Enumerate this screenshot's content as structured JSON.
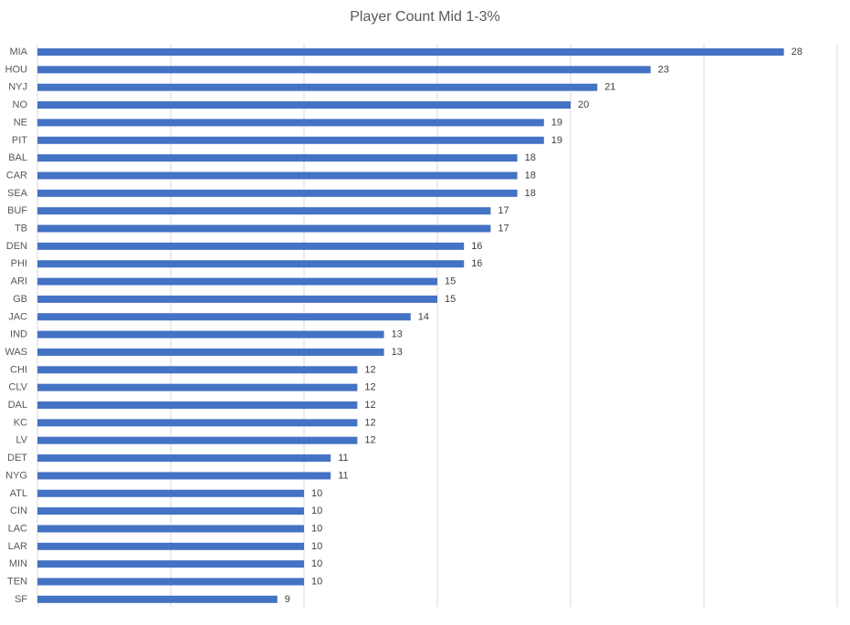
{
  "chart_data": {
    "type": "bar",
    "orientation": "horizontal",
    "title": "Player Count Mid 1-3%",
    "xlabel": "",
    "ylabel": "",
    "categories": [
      "MIA",
      "HOU",
      "NYJ",
      "NO",
      "NE",
      "PIT",
      "BAL",
      "CAR",
      "SEA",
      "BUF",
      "TB",
      "DEN",
      "PHI",
      "ARI",
      "GB",
      "JAC",
      "IND",
      "WAS",
      "CHI",
      "CLV",
      "DAL",
      "KC",
      "LV",
      "DET",
      "NYG",
      "ATL",
      "CIN",
      "LAC",
      "LAR",
      "MIN",
      "TEN",
      "SF"
    ],
    "values": [
      28,
      23,
      21,
      20,
      19,
      19,
      18,
      18,
      18,
      17,
      17,
      16,
      16,
      15,
      15,
      14,
      13,
      13,
      12,
      12,
      12,
      12,
      12,
      11,
      11,
      10,
      10,
      10,
      10,
      10,
      10,
      9
    ],
    "xlim": [
      0,
      30
    ],
    "grid": "vertical",
    "gridline_step": 5,
    "data_labels": true,
    "legend": "none",
    "bar_color": "#4472C4",
    "gridline_color": "#D9D9D9",
    "text_color": "#595959"
  }
}
